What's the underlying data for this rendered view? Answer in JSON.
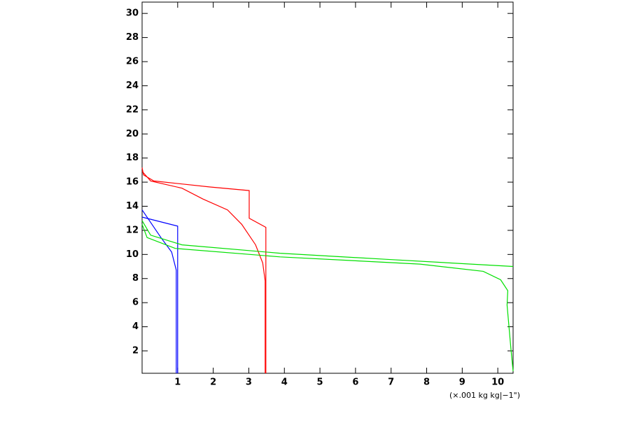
{
  "chart_data": {
    "type": "line",
    "xlabel": "(×.001 kg kg|−1\")",
    "xlim": [
      0,
      10.43
    ],
    "ylim": [
      0.14,
      30.94
    ],
    "xticks": [
      1,
      2,
      3,
      4,
      5,
      6,
      7,
      8,
      9,
      10
    ],
    "yticks": [
      2,
      4,
      6,
      8,
      10,
      12,
      14,
      16,
      18,
      20,
      22,
      24,
      26,
      28,
      30
    ],
    "series": [
      {
        "color": "#0000ff",
        "x": [
          0,
          1.0,
          1.0
        ],
        "values": [
          13.1,
          12.35,
          0.14
        ]
      },
      {
        "color": "#0000ff",
        "x": [
          0,
          0.53,
          0.83,
          0.96,
          0.96
        ],
        "values": [
          13.7,
          11.4,
          10.2,
          8.7,
          0.14
        ]
      },
      {
        "color": "#ff0000",
        "x": [
          0,
          0.04,
          0.33,
          1.91,
          3.01,
          3.01,
          3.48,
          3.48
        ],
        "values": [
          17.2,
          16.6,
          16.1,
          15.6,
          15.3,
          13.0,
          12.25,
          0.14
        ]
      },
      {
        "color": "#ff0000",
        "x": [
          0,
          0.24,
          1.12,
          1.71,
          2.4,
          2.8,
          3.19,
          3.39,
          3.46,
          3.46
        ],
        "values": [
          16.9,
          16.1,
          15.5,
          14.6,
          13.7,
          12.5,
          10.8,
          9.3,
          7.8,
          0.14
        ]
      },
      {
        "color": "#00e000",
        "x": [
          0,
          0.24,
          1.12,
          3.88,
          6.83,
          10.43
        ],
        "values": [
          12.8,
          11.6,
          10.8,
          10.1,
          9.6,
          9.0
        ]
      },
      {
        "color": "#00e000",
        "x": [
          0,
          0.14,
          0.93,
          3.88,
          7.81,
          9.59,
          10.08,
          10.28,
          10.26,
          10.37,
          10.43
        ],
        "values": [
          12.5,
          11.4,
          10.5,
          9.8,
          9.2,
          8.6,
          7.9,
          7.0,
          5.8,
          2.1,
          0.31
        ]
      }
    ]
  }
}
